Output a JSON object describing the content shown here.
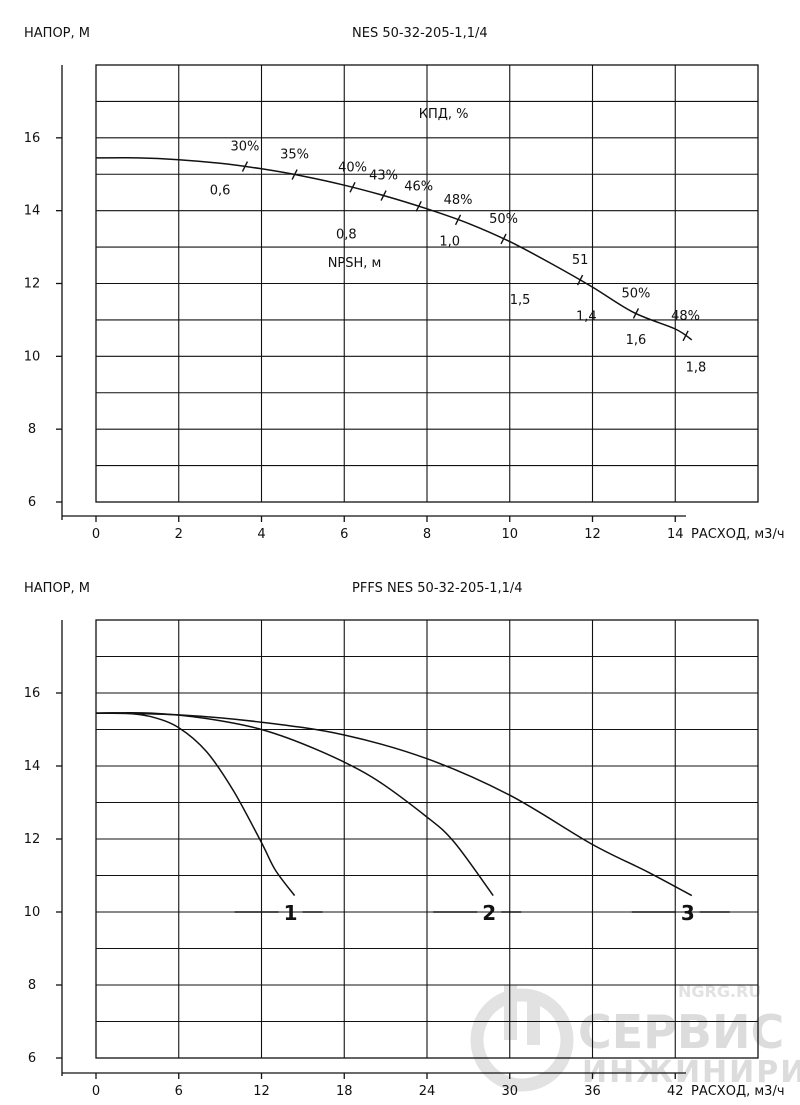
{
  "chart_data": [
    {
      "type": "line",
      "title": "NES 50-32-205-1,1/4",
      "ylabel": "НАПОР, М",
      "xlabel": "РАСХОД, м3/ч",
      "xlim": [
        0,
        16
      ],
      "ylim": [
        6,
        18
      ],
      "xticks": [
        "0",
        "2",
        "4",
        "6",
        "8",
        "10",
        "12",
        "14"
      ],
      "yticks": [
        "6",
        "8",
        "10",
        "12",
        "14",
        "16"
      ],
      "grid": true,
      "efficiency_label": "КПД, %",
      "npsh_label": "NPSH, м",
      "series": [
        {
          "x": [
            0,
            1,
            2,
            3,
            4,
            5,
            6,
            7,
            8,
            9,
            10,
            11,
            12,
            13,
            14,
            14.4
          ],
          "y": [
            15.45,
            15.45,
            15.4,
            15.3,
            15.15,
            14.95,
            14.7,
            14.4,
            14.05,
            13.65,
            13.15,
            12.55,
            11.9,
            11.2,
            10.75,
            10.45
          ]
        }
      ],
      "efficiency_marks": [
        {
          "x": 3.6,
          "label": "30%"
        },
        {
          "x": 4.8,
          "label": "35%"
        },
        {
          "x": 6.2,
          "label": "40%"
        },
        {
          "x": 6.95,
          "label": "43%"
        },
        {
          "x": 7.8,
          "label": "46%"
        },
        {
          "x": 8.75,
          "label": "48%"
        },
        {
          "x": 9.85,
          "label": "50%"
        },
        {
          "x": 11.7,
          "label": "51"
        },
        {
          "x": 13.05,
          "label": "50%"
        },
        {
          "x": 14.25,
          "label": "48%"
        }
      ],
      "npsh_labels": [
        {
          "x": 3.0,
          "y": 14.55,
          "label": "0,6"
        },
        {
          "x": 6.05,
          "y": 13.35,
          "label": "0,8"
        },
        {
          "x": 8.55,
          "y": 13.15,
          "label": "1,0"
        },
        {
          "x": 10.25,
          "y": 11.55,
          "label": "1,5"
        },
        {
          "x": 11.85,
          "y": 11.1,
          "label": "1,4"
        },
        {
          "x": 13.05,
          "y": 10.45,
          "label": "1,6"
        },
        {
          "x": 14.5,
          "y": 9.7,
          "label": "1,8"
        }
      ]
    },
    {
      "type": "line",
      "title": "PFFS NES 50-32-205-1,1/4",
      "ylabel": "НАПОР, М",
      "xlabel": "РАСХОД, м3/ч",
      "xlim": [
        0,
        48
      ],
      "ylim": [
        6,
        18
      ],
      "xticks": [
        "0",
        "6",
        "12",
        "18",
        "24",
        "30",
        "36",
        "42"
      ],
      "yticks": [
        "6",
        "8",
        "10",
        "12",
        "14",
        "16"
      ],
      "grid": true,
      "series": [
        {
          "name": "1",
          "x": [
            0,
            2,
            4,
            6,
            8,
            10,
            12,
            13,
            14.4
          ],
          "y": [
            15.45,
            15.45,
            15.35,
            15.05,
            14.4,
            13.3,
            11.9,
            11.15,
            10.45
          ]
        },
        {
          "name": "2",
          "x": [
            0,
            4,
            8,
            12,
            16,
            20,
            24,
            26,
            28.8
          ],
          "y": [
            15.45,
            15.45,
            15.3,
            15.0,
            14.45,
            13.7,
            12.6,
            11.9,
            10.45
          ]
        },
        {
          "name": "3",
          "x": [
            0,
            6,
            12,
            18,
            24,
            30,
            36,
            40,
            43.2
          ],
          "y": [
            15.45,
            15.4,
            15.2,
            14.85,
            14.2,
            13.2,
            11.85,
            11.1,
            10.45
          ]
        }
      ]
    }
  ],
  "watermark": {
    "line1": "СЕРВИС",
    "line2": "ИНЖИНИРИНГ",
    "site": "NGRG.RU"
  }
}
